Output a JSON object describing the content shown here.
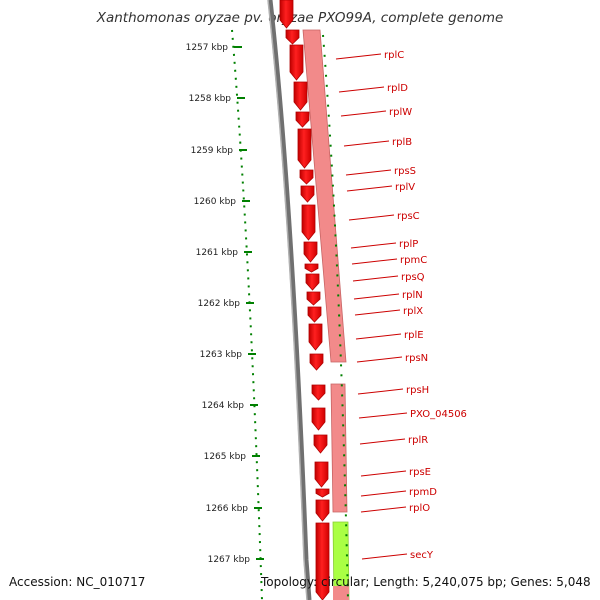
{
  "title": "Xanthomonas oryzae pv. oryzae PXO99A, complete genome",
  "footer": {
    "accession": "Accession: NC_010717",
    "summary": "Topology: circular; Length: 5,240,075 bp; Genes: 5,048"
  },
  "ticks": [
    "1257 kbp",
    "1258 kbp",
    "1259 kbp",
    "1260 kbp",
    "1261 kbp",
    "1262 kbp",
    "1263 kbp",
    "1264 kbp",
    "1265 kbp",
    "1266 kbp",
    "1267 kbp"
  ],
  "genes": [
    "rplC",
    "rplD",
    "rplW",
    "rplB",
    "rpsS",
    "rplV",
    "rpsC",
    "rplP",
    "rpmC",
    "rpsQ",
    "rplN",
    "rplX",
    "rplE",
    "rpsN",
    "rpsH",
    "PXO_04506",
    "rplR",
    "rpsE",
    "rpmD",
    "rplO",
    "secY"
  ],
  "colors": {
    "gene_arrow": "#ff0000",
    "gene_band": "#f08080",
    "secY_band": "#aaff44",
    "label": "#cc0000",
    "tick": "#008000",
    "backbone": "#707070"
  }
}
